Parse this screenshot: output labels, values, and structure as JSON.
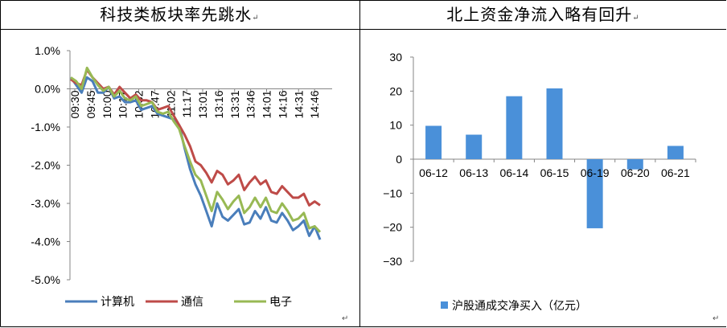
{
  "panels": [
    {
      "title": "科技类板块率先跳水",
      "para_mark": "↵"
    },
    {
      "title": "北上资金净流入略有回升",
      "para_mark": "↵"
    }
  ],
  "colors": {
    "computer": "#4a7ebb",
    "comms": "#be4b48",
    "electronics": "#98b954",
    "bar": "#4a90d9"
  },
  "chart_data": [
    {
      "type": "line",
      "title": "科技类板块率先跳水",
      "ylim": [
        -5.0,
        1.0
      ],
      "yticks": [
        "1.0%",
        "0.0%",
        "-1.0%",
        "-2.0%",
        "-3.0%",
        "-4.0%",
        "-5.0%"
      ],
      "ytick_values": [
        1.0,
        0.0,
        -1.0,
        -2.0,
        -3.0,
        -4.0,
        -5.0
      ],
      "xticks": [
        "09:30",
        "09:45",
        "10:00",
        "10:17",
        "10:32",
        "10:47",
        "11:02",
        "11:17",
        "13:01",
        "13:16",
        "13:31",
        "13:46",
        "14:01",
        "14:16",
        "14:31",
        "14:46"
      ],
      "grid": false,
      "legend": "bottom",
      "series": [
        {
          "name": "计算机",
          "color": "#4a7ebb",
          "values": [
            0.3,
            0.1,
            -0.1,
            0.3,
            0.2,
            -0.1,
            -0.1,
            0.05,
            -0.25,
            -0.2,
            -0.35,
            -0.35,
            -0.3,
            -0.55,
            -0.5,
            -0.45,
            -0.65,
            -0.7,
            -0.75,
            -0.8,
            -0.95,
            -1.55,
            -2.1,
            -2.5,
            -2.8,
            -3.2,
            -3.6,
            -3.0,
            -3.35,
            -3.45,
            -3.3,
            -3.15,
            -3.55,
            -3.5,
            -3.2,
            -3.4,
            -3.1,
            -3.45,
            -3.5,
            -3.25,
            -3.45,
            -3.7,
            -3.6,
            -3.45,
            -3.85,
            -3.6,
            -3.95
          ]
        },
        {
          "name": "通信",
          "color": "#be4b48",
          "values": [
            0.25,
            0.15,
            0.1,
            0.5,
            0.3,
            0.15,
            0.0,
            0.05,
            -0.15,
            0.05,
            -0.1,
            -0.25,
            -0.15,
            -0.3,
            -0.3,
            -0.35,
            -0.55,
            -0.5,
            -0.45,
            -0.7,
            -0.95,
            -1.2,
            -1.5,
            -1.9,
            -2.0,
            -2.2,
            -2.45,
            -2.15,
            -2.25,
            -2.5,
            -2.4,
            -2.25,
            -2.65,
            -2.45,
            -2.3,
            -2.5,
            -2.4,
            -2.7,
            -2.75,
            -2.55,
            -2.7,
            -2.85,
            -2.85,
            -2.75,
            -3.05,
            -2.95,
            -3.05
          ]
        },
        {
          "name": "电子",
          "color": "#98b954",
          "values": [
            0.3,
            0.2,
            0.0,
            0.55,
            0.3,
            0.1,
            -0.05,
            0.05,
            -0.2,
            -0.05,
            -0.25,
            -0.3,
            -0.2,
            -0.45,
            -0.4,
            -0.35,
            -0.6,
            -0.65,
            -0.6,
            -0.85,
            -1.05,
            -1.5,
            -1.9,
            -2.25,
            -2.4,
            -2.8,
            -3.2,
            -2.7,
            -2.9,
            -3.15,
            -2.95,
            -2.8,
            -3.25,
            -3.1,
            -2.85,
            -3.1,
            -2.85,
            -3.2,
            -3.25,
            -3.0,
            -3.2,
            -3.45,
            -3.4,
            -3.25,
            -3.65,
            -3.6,
            -3.75
          ]
        }
      ]
    },
    {
      "type": "bar",
      "title": "北上资金净流入略有回升",
      "categories": [
        "06-12",
        "06-13",
        "06-14",
        "06-15",
        "06-19",
        "06-20",
        "06-21"
      ],
      "series": [
        {
          "name": "沪股通成交净买入（亿元）",
          "values": [
            9.8,
            7.2,
            18.5,
            20.8,
            -20.3,
            -3.0,
            3.9
          ]
        }
      ],
      "ylim": [
        -30,
        30
      ],
      "yticks": [
        "30",
        "20",
        "10",
        "0",
        "−10",
        "−20",
        "−30"
      ],
      "ytick_values": [
        30,
        20,
        10,
        0,
        -10,
        -20,
        -30
      ],
      "grid": false,
      "legend": "bottom"
    }
  ]
}
